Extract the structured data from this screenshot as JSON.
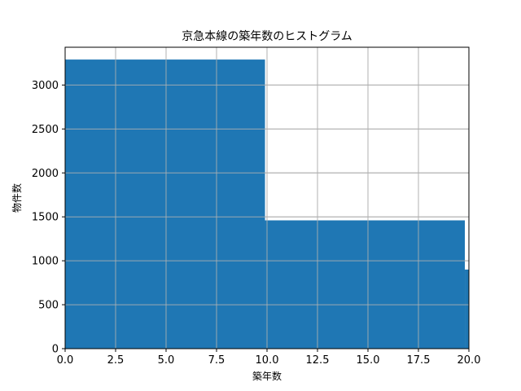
{
  "chart_data": {
    "type": "bar",
    "title": "京急本線の築年数のヒストグラム",
    "xlabel": "築年数",
    "ylabel": "物件数",
    "bins": [
      {
        "start": 0.0,
        "end": 9.9,
        "value": 3290
      },
      {
        "start": 9.9,
        "end": 19.8,
        "value": 1460
      },
      {
        "start": 19.8,
        "end": 20.0,
        "value": 900
      }
    ],
    "xlim": [
      0,
      20
    ],
    "ylim": [
      0,
      3430
    ],
    "xticks": [
      "0.0",
      "2.5",
      "5.0",
      "7.5",
      "10.0",
      "12.5",
      "15.0",
      "17.5",
      "20.0"
    ],
    "yticks": [
      "0",
      "500",
      "1000",
      "1500",
      "2000",
      "2500",
      "3000"
    ],
    "grid": true,
    "bar_color": "#1f77b4",
    "grid_color": "#b0b0b0"
  }
}
